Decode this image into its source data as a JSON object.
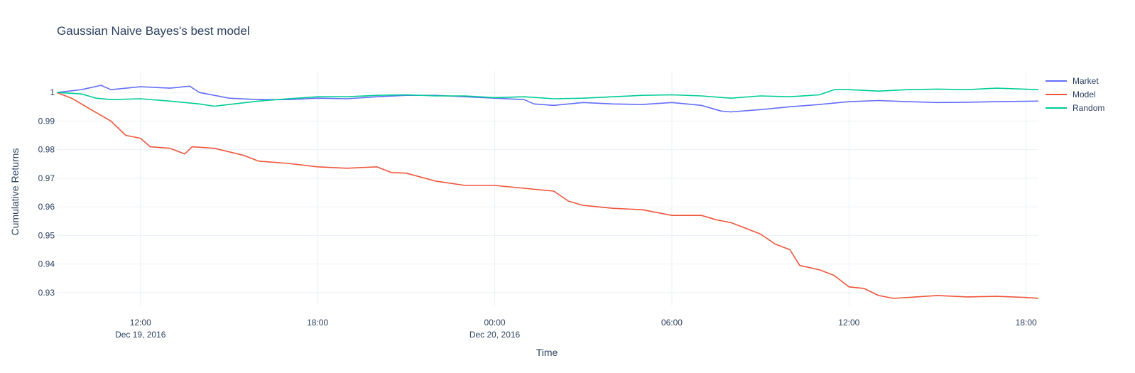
{
  "chart_data": {
    "type": "line",
    "title": "Gaussian Naive Bayes's best model",
    "xlabel": "Time",
    "ylabel": "Cumulative Returns",
    "x_range": [
      "2016-12-19T09:10",
      "2016-12-20T18:25"
    ],
    "ylim": [
      0.9255,
      1.0075
    ],
    "grid": true,
    "legend_position": "top-right",
    "x_ticks": [
      {
        "t": "2016-12-19T12:00",
        "line1": "12:00",
        "line2": "Dec 19, 2016"
      },
      {
        "t": "2016-12-19T18:00",
        "line1": "18:00",
        "line2": ""
      },
      {
        "t": "2016-12-20T00:00",
        "line1": "00:00",
        "line2": "Dec 20, 2016"
      },
      {
        "t": "2016-12-20T06:00",
        "line1": "06:00",
        "line2": ""
      },
      {
        "t": "2016-12-20T12:00",
        "line1": "12:00",
        "line2": ""
      },
      {
        "t": "2016-12-20T18:00",
        "line1": "18:00",
        "line2": ""
      }
    ],
    "y_ticks": [
      {
        "v": 0.93,
        "label": "0.93"
      },
      {
        "v": 0.94,
        "label": "0.94"
      },
      {
        "v": 0.95,
        "label": "0.95"
      },
      {
        "v": 0.96,
        "label": "0.96"
      },
      {
        "v": 0.97,
        "label": "0.97"
      },
      {
        "v": 0.98,
        "label": "0.98"
      },
      {
        "v": 0.99,
        "label": "0.99"
      },
      {
        "v": 1.0,
        "label": "1"
      }
    ],
    "series": [
      {
        "name": "Market",
        "color": "#636efa",
        "points": [
          [
            "2016-12-19T09:10",
            1.0
          ],
          [
            "2016-12-19T10:00",
            1.001
          ],
          [
            "2016-12-19T10:40",
            1.0025
          ],
          [
            "2016-12-19T11:00",
            1.001
          ],
          [
            "2016-12-19T12:00",
            1.002
          ],
          [
            "2016-12-19T13:00",
            1.0015
          ],
          [
            "2016-12-19T13:40",
            1.0022
          ],
          [
            "2016-12-19T14:00",
            1.0
          ],
          [
            "2016-12-19T15:00",
            0.998
          ],
          [
            "2016-12-19T16:00",
            0.9975
          ],
          [
            "2016-12-19T17:00",
            0.9975
          ],
          [
            "2016-12-19T18:00",
            0.998
          ],
          [
            "2016-12-19T19:00",
            0.9978
          ],
          [
            "2016-12-19T20:00",
            0.9985
          ],
          [
            "2016-12-19T21:00",
            0.999
          ],
          [
            "2016-12-19T22:00",
            0.999
          ],
          [
            "2016-12-19T23:00",
            0.9985
          ],
          [
            "2016-12-20T00:00",
            0.998
          ],
          [
            "2016-12-20T01:00",
            0.9975
          ],
          [
            "2016-12-20T01:20",
            0.996
          ],
          [
            "2016-12-20T02:00",
            0.9955
          ],
          [
            "2016-12-20T03:00",
            0.9965
          ],
          [
            "2016-12-20T04:00",
            0.996
          ],
          [
            "2016-12-20T05:00",
            0.9958
          ],
          [
            "2016-12-20T06:00",
            0.9965
          ],
          [
            "2016-12-20T07:00",
            0.9955
          ],
          [
            "2016-12-20T07:40",
            0.9935
          ],
          [
            "2016-12-20T08:00",
            0.9932
          ],
          [
            "2016-12-20T09:00",
            0.994
          ],
          [
            "2016-12-20T10:00",
            0.995
          ],
          [
            "2016-12-20T11:00",
            0.9958
          ],
          [
            "2016-12-20T12:00",
            0.9968
          ],
          [
            "2016-12-20T13:00",
            0.9972
          ],
          [
            "2016-12-20T14:00",
            0.9968
          ],
          [
            "2016-12-20T15:00",
            0.9965
          ],
          [
            "2016-12-20T16:00",
            0.9966
          ],
          [
            "2016-12-20T17:00",
            0.9968
          ],
          [
            "2016-12-20T18:25",
            0.997
          ]
        ]
      },
      {
        "name": "Model",
        "color": "#ef553b",
        "points": [
          [
            "2016-12-19T09:10",
            1.0
          ],
          [
            "2016-12-19T09:40",
            0.998
          ],
          [
            "2016-12-19T10:00",
            0.996
          ],
          [
            "2016-12-19T10:30",
            0.993
          ],
          [
            "2016-12-19T11:00",
            0.99
          ],
          [
            "2016-12-19T11:30",
            0.985
          ],
          [
            "2016-12-19T12:00",
            0.984
          ],
          [
            "2016-12-19T12:20",
            0.981
          ],
          [
            "2016-12-19T13:00",
            0.9805
          ],
          [
            "2016-12-19T13:30",
            0.9785
          ],
          [
            "2016-12-19T13:45",
            0.981
          ],
          [
            "2016-12-19T14:30",
            0.9805
          ],
          [
            "2016-12-19T15:30",
            0.978
          ],
          [
            "2016-12-19T16:00",
            0.976
          ],
          [
            "2016-12-19T17:00",
            0.9752
          ],
          [
            "2016-12-19T18:00",
            0.974
          ],
          [
            "2016-12-19T19:00",
            0.9735
          ],
          [
            "2016-12-19T20:00",
            0.974
          ],
          [
            "2016-12-19T20:30",
            0.972
          ],
          [
            "2016-12-19T21:00",
            0.9718
          ],
          [
            "2016-12-19T22:00",
            0.969
          ],
          [
            "2016-12-19T23:00",
            0.9675
          ],
          [
            "2016-12-20T00:00",
            0.9675
          ],
          [
            "2016-12-20T01:00",
            0.9665
          ],
          [
            "2016-12-20T02:00",
            0.9655
          ],
          [
            "2016-12-20T02:30",
            0.962
          ],
          [
            "2016-12-20T03:00",
            0.9605
          ],
          [
            "2016-12-20T04:00",
            0.9595
          ],
          [
            "2016-12-20T05:00",
            0.959
          ],
          [
            "2016-12-20T06:00",
            0.957
          ],
          [
            "2016-12-20T07:00",
            0.957
          ],
          [
            "2016-12-20T07:30",
            0.9555
          ],
          [
            "2016-12-20T08:00",
            0.9545
          ],
          [
            "2016-12-20T09:00",
            0.9505
          ],
          [
            "2016-12-20T09:30",
            0.947
          ],
          [
            "2016-12-20T10:00",
            0.945
          ],
          [
            "2016-12-20T10:20",
            0.9395
          ],
          [
            "2016-12-20T11:00",
            0.938
          ],
          [
            "2016-12-20T11:30",
            0.936
          ],
          [
            "2016-12-20T12:00",
            0.932
          ],
          [
            "2016-12-20T12:30",
            0.9315
          ],
          [
            "2016-12-20T13:00",
            0.929
          ],
          [
            "2016-12-20T13:30",
            0.928
          ],
          [
            "2016-12-20T14:00",
            0.9283
          ],
          [
            "2016-12-20T15:00",
            0.929
          ],
          [
            "2016-12-20T16:00",
            0.9285
          ],
          [
            "2016-12-20T17:00",
            0.9287
          ],
          [
            "2016-12-20T18:00",
            0.9283
          ],
          [
            "2016-12-20T18:25",
            0.928
          ]
        ]
      },
      {
        "name": "Random",
        "color": "#00cc96",
        "points": [
          [
            "2016-12-19T09:10",
            1.0
          ],
          [
            "2016-12-19T10:00",
            0.9995
          ],
          [
            "2016-12-19T10:30",
            0.998
          ],
          [
            "2016-12-19T11:00",
            0.9975
          ],
          [
            "2016-12-19T12:00",
            0.9978
          ],
          [
            "2016-12-19T13:00",
            0.997
          ],
          [
            "2016-12-19T14:00",
            0.996
          ],
          [
            "2016-12-19T14:30",
            0.9952
          ],
          [
            "2016-12-19T15:00",
            0.9958
          ],
          [
            "2016-12-19T16:00",
            0.997
          ],
          [
            "2016-12-19T17:00",
            0.9978
          ],
          [
            "2016-12-19T18:00",
            0.9985
          ],
          [
            "2016-12-19T19:00",
            0.9985
          ],
          [
            "2016-12-19T20:00",
            0.999
          ],
          [
            "2016-12-19T21:00",
            0.9992
          ],
          [
            "2016-12-19T22:00",
            0.9988
          ],
          [
            "2016-12-19T23:00",
            0.9988
          ],
          [
            "2016-12-20T00:00",
            0.9982
          ],
          [
            "2016-12-20T01:00",
            0.9985
          ],
          [
            "2016-12-20T02:00",
            0.9978
          ],
          [
            "2016-12-20T03:00",
            0.998
          ],
          [
            "2016-12-20T04:00",
            0.9985
          ],
          [
            "2016-12-20T05:00",
            0.999
          ],
          [
            "2016-12-20T06:00",
            0.9992
          ],
          [
            "2016-12-20T07:00",
            0.9988
          ],
          [
            "2016-12-20T08:00",
            0.998
          ],
          [
            "2016-12-20T09:00",
            0.9988
          ],
          [
            "2016-12-20T10:00",
            0.9985
          ],
          [
            "2016-12-20T11:00",
            0.9992
          ],
          [
            "2016-12-20T11:30",
            1.001
          ],
          [
            "2016-12-20T12:00",
            1.001
          ],
          [
            "2016-12-20T13:00",
            1.0005
          ],
          [
            "2016-12-20T14:00",
            1.001
          ],
          [
            "2016-12-20T15:00",
            1.0012
          ],
          [
            "2016-12-20T16:00",
            1.001
          ],
          [
            "2016-12-20T17:00",
            1.0015
          ],
          [
            "2016-12-20T18:25",
            1.001
          ]
        ]
      }
    ]
  }
}
